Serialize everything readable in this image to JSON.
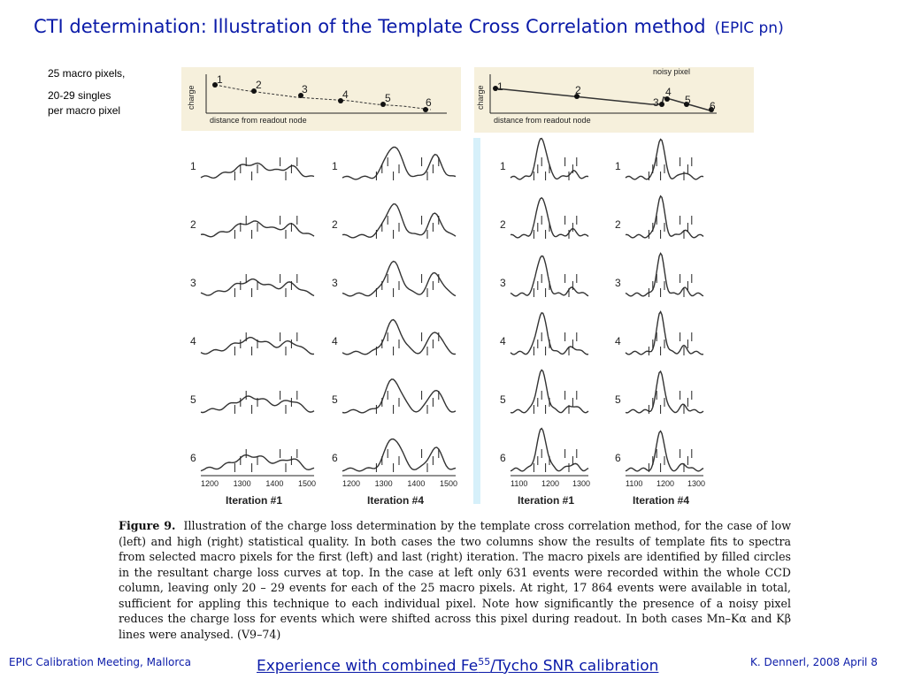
{
  "header": {
    "title": "CTI determination: Illustration of the Template Cross Correlation method",
    "subtitle": "(EPIC pn)"
  },
  "notes": {
    "line1": "25 macro pixels,",
    "line2": "20-29 singles",
    "line3": "per macro pixel"
  },
  "left_panel": {
    "ylabel": "charge",
    "xlabel": "distance from readout node",
    "points": [
      "1",
      "2",
      "3",
      "4",
      "5",
      "6"
    ]
  },
  "right_panel": {
    "ylabel": "charge",
    "xlabel": "distance from readout node",
    "points": [
      "1",
      "2",
      "3",
      "4",
      "5",
      "6"
    ],
    "annotation": "noisy pixel"
  },
  "grids": {
    "row_labels": [
      "1",
      "2",
      "3",
      "4",
      "5",
      "6"
    ],
    "left_ticks": [
      "1200",
      "1300",
      "1400",
      "1500"
    ],
    "right_ticks": [
      "1100",
      "1200",
      "1300"
    ],
    "iter1": "Iteration #1",
    "iter4": "Iteration #4"
  },
  "caption": {
    "label": "Figure 9.",
    "text": "Illustration of the charge loss determination by the template cross correlation method, for the case of low (left) and high (right) statistical quality. In both cases the two columns show the results of template fits to spectra from selected macro pixels for the first (left) and last (right) iteration. The macro pixels are identified by filled circles in the resultant charge loss curves at top. In the case at left only 631 events were recorded within the whole CCD column, leaving only 20 – 29 events for each of the 25 macro pixels. At right, 17 864 events were available in total, sufficient for appling this technique to each individual pixel. Note how significantly the presence of a noisy pixel reduces the charge loss for events which were shifted across this pixel during readout. In both cases Mn–Kα and Kβ lines were analysed. (V9–74)"
  },
  "footer": {
    "left": "EPIC Calibration Meeting, Mallorca",
    "center": "Experience with combined Fe55/Tycho SNR calibration",
    "right": "K. Dennerl, 2008 April 8"
  },
  "colors": {
    "title": "#0a1aa8",
    "panel_bg": "#f6f0dc",
    "divider": "#d6f0fa"
  }
}
